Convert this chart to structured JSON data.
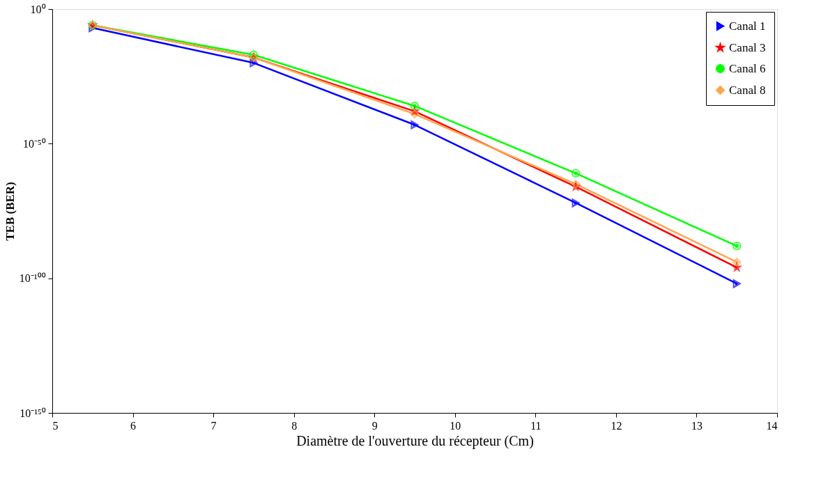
{
  "chart_data": {
    "type": "line",
    "xlabel": "Diamètre de l'ouverture du récepteur (Cm)",
    "ylabel": "TEB (BER)",
    "x": [
      5.5,
      7.5,
      9.5,
      11.5,
      13.5
    ],
    "series": [
      {
        "name": "Canal 1",
        "color": "#0000ff",
        "marker": "triangle",
        "values": [
          1e-07,
          1e-20,
          1e-43,
          1e-72,
          1e-102
        ]
      },
      {
        "name": "Canal 3",
        "color": "#ff0000",
        "marker": "star",
        "values": [
          1e-06,
          1e-18,
          1e-38,
          1e-66,
          1e-96
        ]
      },
      {
        "name": "Canal 6",
        "color": "#00ff00",
        "marker": "circle",
        "values": [
          1e-06,
          1e-17,
          1e-36,
          1e-61,
          1e-88
        ]
      },
      {
        "name": "Canal 8",
        "color": "#ffa64d",
        "marker": "diamond",
        "values": [
          1e-06,
          1e-18,
          1e-39,
          1e-65,
          1e-94
        ]
      }
    ],
    "log": true,
    "xlim": [
      5,
      14
    ],
    "xticks": [
      5,
      6,
      7,
      8,
      9,
      10,
      11,
      12,
      13,
      14
    ],
    "ylim": [
      1e-150,
      1
    ],
    "yticks": [
      {
        "value": 1,
        "label": "10⁰"
      },
      {
        "value": 1e-50,
        "label": "10⁻⁵⁰"
      },
      {
        "value": 1e-100,
        "label": "10⁻¹⁰⁰"
      },
      {
        "value": 1e-150,
        "label": "10⁻¹⁵⁰"
      }
    ],
    "grid": false,
    "legend": "top right",
    "line_style": "solid"
  }
}
